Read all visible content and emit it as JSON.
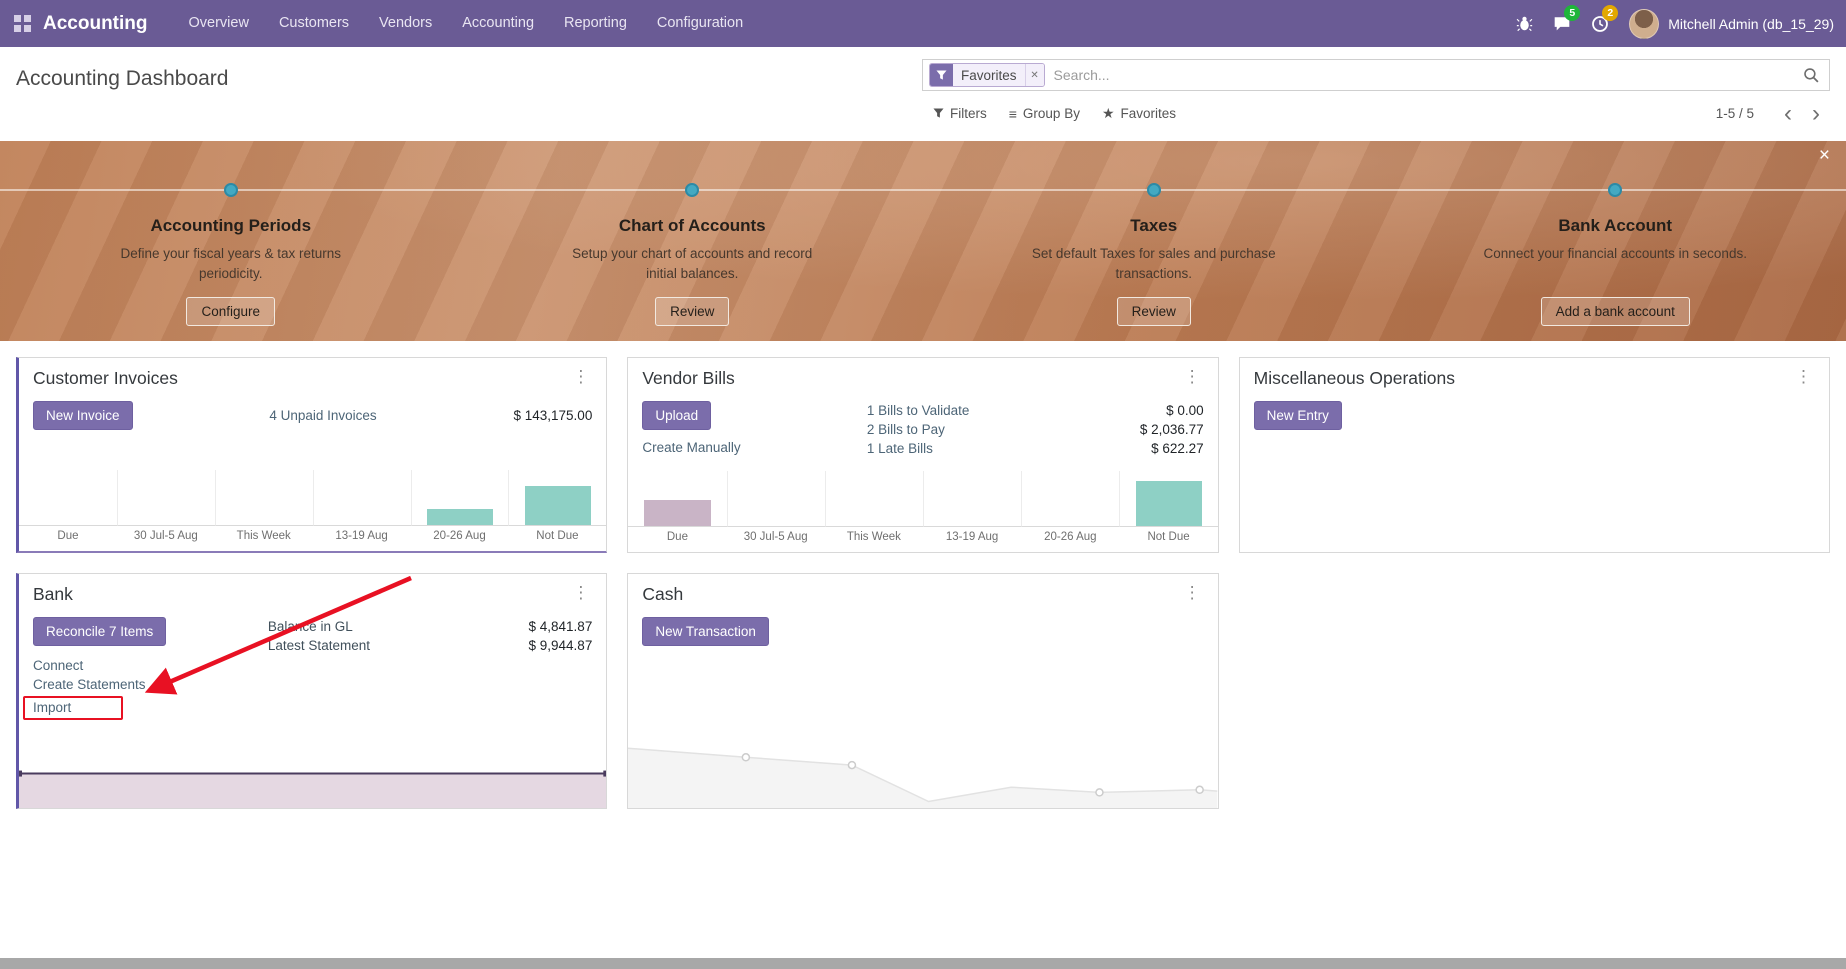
{
  "icons": {
    "kebab": "⋮",
    "close": "×",
    "star": "★",
    "group_by": "≡",
    "chevron_left": "‹",
    "chevron_right": "›",
    "facet_remove": "✕"
  },
  "colors": {
    "navbar": "#6a5b95",
    "primary_button": "#7b6dab",
    "teal_bar": "#8ed0c5",
    "mauve_bar": "#c9b4c6",
    "annotation_red": "#e81123"
  },
  "navbar": {
    "app_name": "Accounting",
    "menu": [
      "Overview",
      "Customers",
      "Vendors",
      "Accounting",
      "Reporting",
      "Configuration"
    ],
    "message_badge": "5",
    "activity_badge": "2",
    "user_name": "Mitchell Admin (db_15_29)"
  },
  "control_panel": {
    "title": "Accounting Dashboard",
    "search": {
      "facet": "Favorites",
      "placeholder": "Search..."
    },
    "filters": "Filters",
    "group_by": "Group By",
    "favorites": "Favorites",
    "pager": "1-5 / 5"
  },
  "onboarding": {
    "steps": [
      {
        "title": "Accounting Periods",
        "description": "Define your fiscal years & tax returns periodicity.",
        "button": "Configure"
      },
      {
        "title": "Chart of Accounts",
        "description": "Setup your chart of accounts and record initial balances.",
        "button": "Review"
      },
      {
        "title": "Taxes",
        "description": "Set default Taxes for sales and purchase transactions.",
        "button": "Review"
      },
      {
        "title": "Bank Account",
        "description": "Connect your financial accounts in seconds.",
        "button": "Add a bank account"
      }
    ]
  },
  "cards": {
    "customer_invoices": {
      "title": "Customer Invoices",
      "button": "New Invoice",
      "link": "4 Unpaid Invoices",
      "amount": "$ 143,175.00"
    },
    "vendor_bills": {
      "title": "Vendor Bills",
      "button": "Upload",
      "link": "Create Manually",
      "rows": [
        {
          "label": "1 Bills to Validate",
          "amount": "$ 0.00"
        },
        {
          "label": "2 Bills to Pay",
          "amount": "$ 2,036.77"
        },
        {
          "label": "1 Late Bills",
          "amount": "$ 622.27"
        }
      ]
    },
    "misc_operations": {
      "title": "Miscellaneous Operations",
      "button": "New Entry"
    },
    "bank": {
      "title": "Bank",
      "button": "Reconcile 7 Items",
      "rows": [
        {
          "label": "Balance in GL",
          "amount": "$ 4,841.87"
        },
        {
          "label": "Latest Statement",
          "amount": "$ 9,944.87"
        }
      ],
      "links": [
        "Connect",
        "Create Statements",
        "Import"
      ]
    },
    "cash": {
      "title": "Cash",
      "button": "New Transaction"
    }
  },
  "chart_data": [
    {
      "id": "customer-invoices-bars",
      "type": "bar",
      "categories": [
        "Due",
        "30 Jul-5 Aug",
        "This Week",
        "13-19 Aug",
        "20-26 Aug",
        "Not Due"
      ],
      "values": [
        0,
        0,
        0,
        0,
        16,
        39
      ],
      "colors": [
        "#8ed0c5",
        "#8ed0c5",
        "#8ed0c5",
        "#8ed0c5",
        "#8ed0c5",
        "#8ed0c5"
      ]
    },
    {
      "id": "vendor-bills-bars",
      "type": "bar",
      "categories": [
        "Due",
        "30 Jul-5 Aug",
        "This Week",
        "13-19 Aug",
        "20-26 Aug",
        "Not Due"
      ],
      "values": [
        26,
        0,
        0,
        0,
        0,
        45
      ],
      "colors": [
        "#c9b4c6",
        "#8ed0c5",
        "#8ed0c5",
        "#8ed0c5",
        "#8ed0c5",
        "#8ed0c5"
      ]
    },
    {
      "id": "bank-line",
      "type": "area",
      "points": [
        [
          0,
          18
        ],
        [
          100,
          18
        ]
      ],
      "fill": "#e5d8e2",
      "stroke": "#4a3b5e",
      "stroke_width": 2,
      "markers": [
        [
          0,
          18
        ],
        [
          100,
          18
        ]
      ],
      "marker_shape": "square",
      "marker_color": "#4a3b5e"
    },
    {
      "id": "cash-line",
      "type": "area",
      "points": [
        [
          0,
          54
        ],
        [
          20,
          61
        ],
        [
          38,
          67
        ],
        [
          51,
          95
        ],
        [
          65,
          84
        ],
        [
          80,
          88
        ],
        [
          97,
          86
        ],
        [
          100,
          87
        ]
      ],
      "fill": "#f4f4f4",
      "stroke": "#e2e2e2",
      "stroke_width": 1.5,
      "markers": [
        [
          20,
          61
        ],
        [
          38,
          67
        ],
        [
          80,
          88
        ],
        [
          97,
          86
        ]
      ],
      "marker_shape": "circle",
      "marker_color": "#cccccc"
    }
  ]
}
